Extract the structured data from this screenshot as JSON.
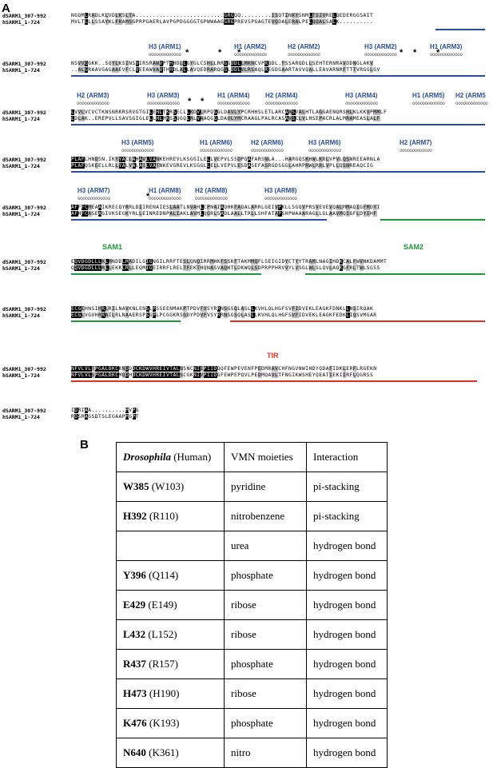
{
  "panels": {
    "a": "A",
    "b": "B"
  },
  "names": {
    "d": "dSARM1_307-992",
    "h": "hSARM1_1-724"
  },
  "colors": {
    "arm": "#2a4ea0",
    "sam": "#1a9a3a",
    "tir": "#e03020"
  },
  "blocks": [
    {
      "d": "NGQMLRADLKLVDLKSLTA..........................GRGQQ.........ISQTINKYSNMLTSIVRELQEDERGGSAIT",
      "h": "MVLTLLLSSAYKLFRAMSGPRPGAERLAVPGPDGGGGTGPWWAAGGRGPREVSPGAGTEVQDALERALPELQQALSALK.........."
    },
    {
      "d": "NSVVGGKK..SQYLKSINSVIRSRAWVPTHHDLLGYGLCSHLLRRGGDDLLMKNCVPRQDL.FSSARQDLLSEHTERNRAVDDNGLAKV",
      "h": "..ALGRAAVGAGAAEVFCLVEEAWVAVTHHDLALLAVQEDRARQGGLDDLVLRSAQLREGDGAARTAVVQALLEAVARNRFTTTVRGGLGV"
    },
    {
      "d": "LVVLVCVCTKNSNRKRSRVGTGILEHLTKRSECLLKDVLRPQGGLDAVLYPCRHHSLETLARCAASVALHTLAGGAENQRSHLKLKKVPMMLF",
      "h": "LDLAK..EREPVLLSAVSGIGLELLHLMKSSQGQLRLVAAQGGLDAVLYMCRAAGLPALRCASAVSCLVLHSEPACRLALMRAMEASLALF"
    },
    {
      "d": "PLAFLHNDSN.IKYYACLAHAVLVANKEHREVLKSGGILELLVEPVLSSDPQAFARSNLA...HARGQSKHWLKRLVPVLQSNREEARNLA",
      "h": "PLAFQSKEELLRLLYALVALAILVATNKEVGREVLKSGGLLELLVEPVLESDASEFASRGDSGGLAHRPRWLRRLVPLLQSNREAQCIG"
    },
    {
      "d": "AFFFCMEAAIKRECQYRRLDIIRENAIESLAATLNVAHLCPNAIAQHKFAQALARRLGEIVPKLLSGQVPRSVEVEVQALMMAQIGFMDYI",
      "h": "AFHFCASEAGIVKSEGKYRLLEINREDNPALIAKLAVMLQGRLSADLAALLTRLLSHFATAPSHPWAAARAGLLGLAAVMQIGFLDYIHF"
    },
    {
      "d": "EQVDGDLLLKLMNDDLRADILGIGNGILRRFTESLQNQIRRMHKFSSKFTAKMMQFLSEIGIDYCTYYTRAMLNAGIHDKCALFWVNKDAMMT",
      "h": "QQVDGDLLLRLLEKKLRLLEQMIGEIRRFLRELTFEKTHQNASVAQHTLDKWQLSDPRPPHRVVYLVSGLWLSLQVLAQKGFRLTWLSGSS"
    },
    {
      "d": "ECGIHNSIHRLRILNAVKNLENSLPSSEENMAKPTPDVFVSYRRNSGSQLASLLKVHLQLHGFSVFIDVEKLEAGKFDNKLLNSIRQAK",
      "h": "ECGLVGVHRRAILRLNAAERSPSGPLPCGGKRSGDYPDVFVSYRRNSGSQLASLLKVHLQLHGFSVFIDVEKLEAGKFEDKLIQSVMGAR"
    },
    {
      "d": "NFVLVLTPGALDKCKNDDDCKDWVHREIVTALNSNCNIIPIIDQQFEWPEVENFPEDMRAVCHFNGVNWIHDYQDAFIDKLERFLRGEKN",
      "h": "NFVLVLSPGALDKCMQDHDCKDWVHREIVTALSCGKNIVPIIDGFEWPEPQVLPEDMQAVLTFNGIKWSHEYQEATIEKIIRFLQGRSS"
    },
    {
      "d": "IDRIAA..........MVPG",
      "h": "RDSRAGSDTSLEGAAPMGPT"
    }
  ],
  "ann1": {
    "h3_arm1": "H3 (ARM1)",
    "h1_arm2": "H1 (ARM2)",
    "h2_arm2": "H2 (ARM2)",
    "h3_arm2": "H3 (ARM2)",
    "h1_arm3": "H1 (ARM3)"
  },
  "ann2": {
    "h2_arm3": "H2 (ARM3)",
    "h3_arm3": "H3 (ARM3)",
    "h1_arm4": "H1 (ARM4)",
    "h2_arm4": "H2 (ARM4)",
    "h3_arm4": "H3 (ARM4)",
    "h1_arm5": "H1 (ARM5)",
    "h2_arm5": "H2 (ARM5"
  },
  "ann3": {
    "h3_arm5": "H3 (ARM5)",
    "h1_arm6": "H1 (ARM6)",
    "h2_arm6": "H2 (ARM6)",
    "h3_arm6": "H3 (ARM6)",
    "h2_arm7": "H2 (ARM7)"
  },
  "ann4": {
    "h3_arm7": "H3 (ARM7)",
    "h1_arm8": "H1 (ARM8)",
    "h2_arm8": "H2 (ARM8)",
    "h3_arm8": "H3 (ARM8)"
  },
  "domains": {
    "sam1": "SAM1",
    "sam2": "SAM2",
    "tir": "TIR"
  },
  "star": "*",
  "table": {
    "header": [
      "(Human)",
      "VMN moieties",
      "Interaction"
    ],
    "header_italic": "Drosophila",
    "rows": [
      {
        "d": "W385",
        "h": "(W103)",
        "moiety": "pyridine",
        "interaction": "pi-stacking"
      },
      {
        "d": "H392",
        "h": "(R110)",
        "moiety": "nitrobenzene",
        "interaction": "pi-stacking"
      },
      {
        "d": "",
        "h": "",
        "moiety": "urea",
        "interaction": "hydrogen bond"
      },
      {
        "d": "Y396",
        "h": "(Q114)",
        "moiety": "phosphate",
        "interaction": "hydrogen bond"
      },
      {
        "d": "E429",
        "h": "(E149)",
        "moiety": "ribose",
        "interaction": "hydrogen bond"
      },
      {
        "d": "L432",
        "h": "(L152)",
        "moiety": "ribose",
        "interaction": "hydrogen bond"
      },
      {
        "d": "R437",
        "h": "(R157)",
        "moiety": "phosphate",
        "interaction": "hydrogen bond"
      },
      {
        "d": "H473",
        "h": "(H190)",
        "moiety": "ribose",
        "interaction": "hydrogen bond"
      },
      {
        "d": "K476",
        "h": "(K193)",
        "moiety": "phosphate",
        "interaction": "hydrogen bond"
      },
      {
        "d": "N640",
        "h": "(K361)",
        "moiety": "nitro",
        "interaction": "hydrogen bond"
      }
    ]
  }
}
